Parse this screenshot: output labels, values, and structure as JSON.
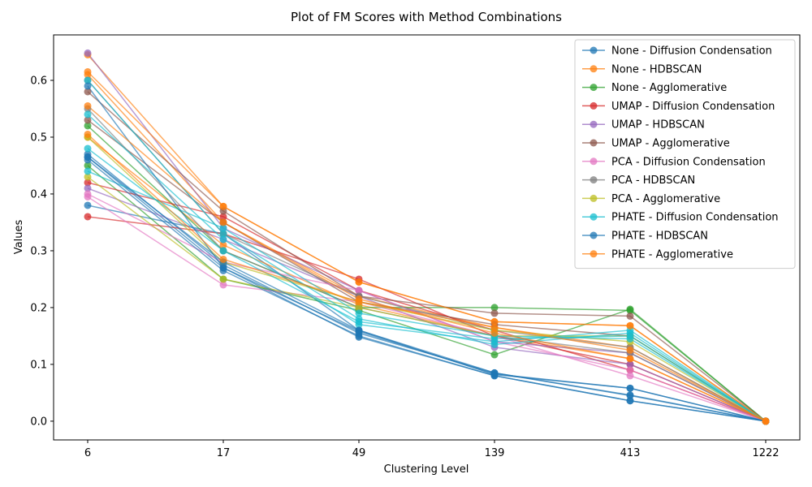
{
  "chart_data": {
    "type": "line",
    "title": "Plot of FM Scores with Method Combinations",
    "xlabel": "Clustering Level",
    "ylabel": "Values",
    "categories": [
      "6",
      "17",
      "49",
      "139",
      "413",
      "1222"
    ],
    "yticks": [
      "0.0",
      "0.1",
      "0.2",
      "0.3",
      "0.4",
      "0.5",
      "0.6"
    ],
    "ylim": [
      -0.033,
      0.68
    ],
    "grid": false,
    "legend_position": "top-right",
    "series": [
      {
        "name": "None - Diffusion Condensation",
        "color": "#1f77b4",
        "lines": [
          [
            0.465,
            0.27,
            0.148,
            0.08,
            0.036,
            0.0
          ],
          [
            0.47,
            0.275,
            0.155,
            0.085,
            0.045,
            0.0
          ],
          [
            0.38,
            0.33,
            0.16,
            0.082,
            0.058,
            0.0
          ]
        ]
      },
      {
        "name": "None - HDBSCAN",
        "color": "#ff7f0e",
        "lines": [
          [
            0.645,
            0.378,
            0.245,
            0.175,
            0.168,
            0.0
          ],
          [
            0.61,
            0.35,
            0.22,
            0.165,
            0.13,
            0.0
          ],
          [
            0.5,
            0.31,
            0.205,
            0.15,
            0.11,
            0.0
          ]
        ]
      },
      {
        "name": "None - Agglomerative",
        "color": "#2ca02c",
        "lines": [
          [
            0.45,
            0.25,
            0.195,
            0.117,
            0.197,
            0.0
          ],
          [
            0.52,
            0.3,
            0.2,
            0.2,
            0.195,
            0.0
          ]
        ]
      },
      {
        "name": "UMAP - Diffusion Condensation",
        "color": "#d62728",
        "lines": [
          [
            0.36,
            0.33,
            0.25,
            0.15,
            0.1,
            0.0
          ],
          [
            0.42,
            0.36,
            0.23,
            0.16,
            0.09,
            0.0
          ]
        ]
      },
      {
        "name": "UMAP - HDBSCAN",
        "color": "#9467bd",
        "lines": [
          [
            0.648,
            0.34,
            0.23,
            0.14,
            0.12,
            0.0
          ],
          [
            0.41,
            0.32,
            0.22,
            0.13,
            0.1,
            0.0
          ]
        ]
      },
      {
        "name": "UMAP - Agglomerative",
        "color": "#8c564b",
        "lines": [
          [
            0.58,
            0.37,
            0.22,
            0.19,
            0.185,
            0.0
          ],
          [
            0.53,
            0.35,
            0.21,
            0.17,
            0.15,
            0.0
          ]
        ]
      },
      {
        "name": "PCA - Diffusion Condensation",
        "color": "#e377c2",
        "lines": [
          [
            0.395,
            0.24,
            0.21,
            0.15,
            0.08,
            0.0
          ],
          [
            0.4,
            0.28,
            0.23,
            0.14,
            0.09,
            0.0
          ]
        ]
      },
      {
        "name": "PCA - HDBSCAN",
        "color": "#7f7f7f",
        "lines": [
          [
            0.55,
            0.3,
            0.2,
            0.15,
            0.12,
            0.0
          ],
          [
            0.6,
            0.33,
            0.22,
            0.16,
            0.13,
            0.0
          ]
        ]
      },
      {
        "name": "PCA - Agglomerative",
        "color": "#bcbd22",
        "lines": [
          [
            0.43,
            0.25,
            0.2,
            0.15,
            0.15,
            0.0
          ],
          [
            0.5,
            0.28,
            0.21,
            0.16,
            0.14,
            0.0
          ]
        ]
      },
      {
        "name": "PHATE - Diffusion Condensation",
        "color": "#17becf",
        "lines": [
          [
            0.6,
            0.33,
            0.18,
            0.135,
            0.155,
            0.0
          ],
          [
            0.54,
            0.32,
            0.17,
            0.14,
            0.16,
            0.0
          ],
          [
            0.48,
            0.3,
            0.175,
            0.145,
            0.15,
            0.0
          ],
          [
            0.44,
            0.34,
            0.19,
            0.15,
            0.145,
            0.0
          ]
        ]
      },
      {
        "name": "PHATE - HDBSCAN",
        "color": "#1f77b4",
        "lines": [
          [
            0.46,
            0.265,
            0.15,
            0.08,
            0.036,
            0.0
          ],
          [
            0.465,
            0.28,
            0.16,
            0.085,
            0.046,
            0.0
          ],
          [
            0.59,
            0.27,
            0.158,
            0.083,
            0.058,
            0.0
          ]
        ]
      },
      {
        "name": "PHATE - Agglomerative",
        "color": "#ff7f0e",
        "lines": [
          [
            0.615,
            0.378,
            0.245,
            0.175,
            0.168,
            0.0
          ],
          [
            0.505,
            0.285,
            0.21,
            0.165,
            0.125,
            0.0
          ],
          [
            0.555,
            0.35,
            0.215,
            0.155,
            0.11,
            0.0
          ]
        ]
      }
    ]
  }
}
